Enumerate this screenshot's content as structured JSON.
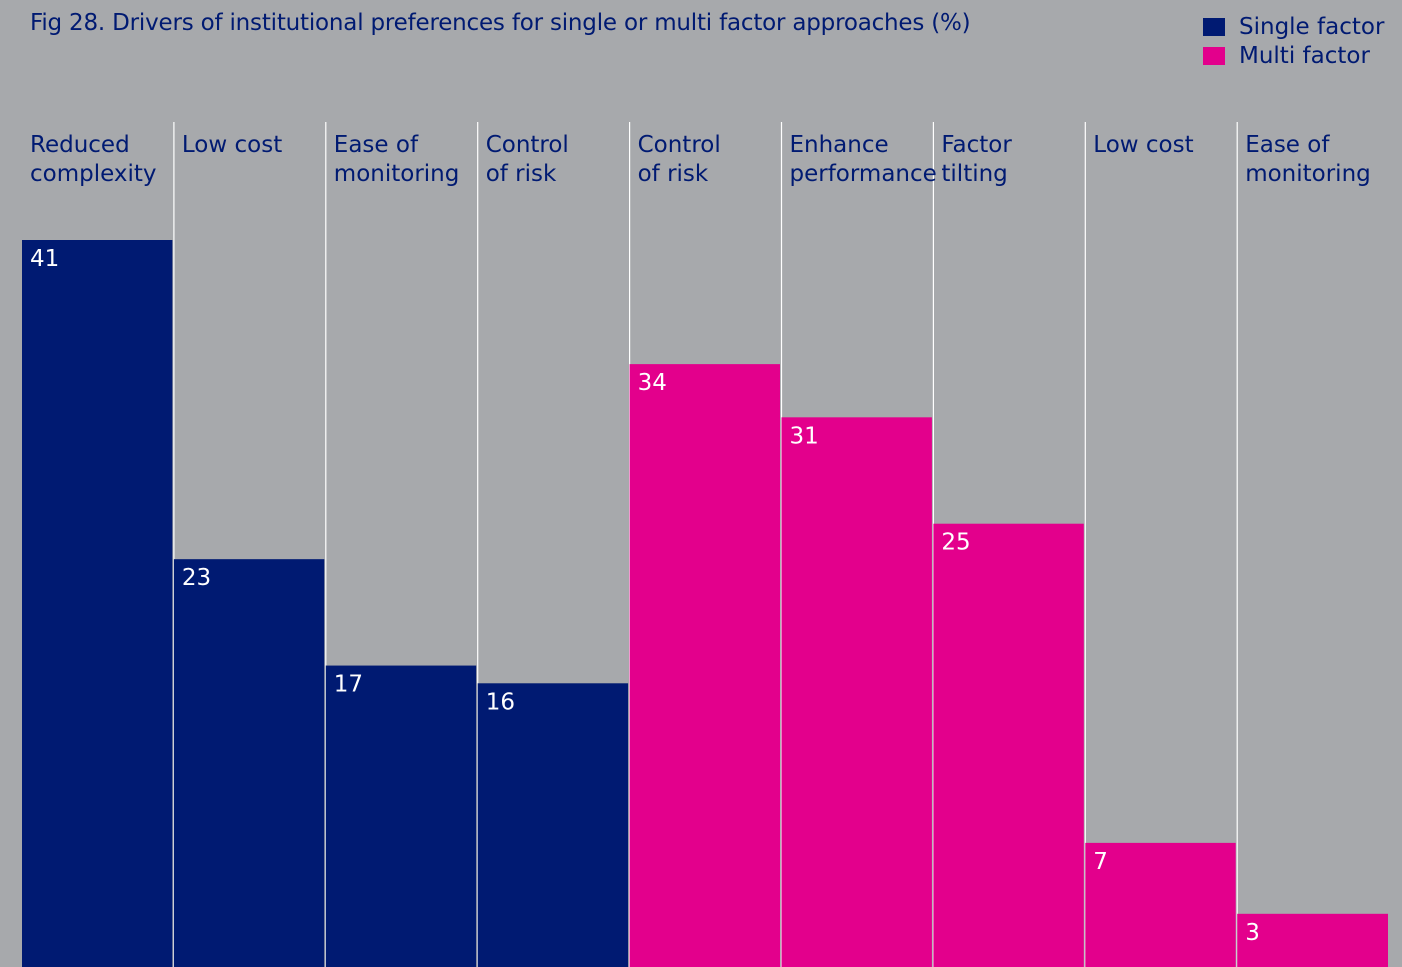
{
  "title": "Fig 28. Drivers of institutional preferences for single or multi factor approaches (%)",
  "legend": [
    {
      "label": "Single factor",
      "color": "#001a72"
    },
    {
      "label": "Multi factor",
      "color": "#e3008c"
    }
  ],
  "chart_data": {
    "type": "bar",
    "title": "Fig 28. Drivers of institutional preferences for single or multi factor approaches (%)",
    "ylim": [
      0,
      41
    ],
    "grid": false,
    "legend_position": "top-right",
    "categories": [
      [
        "Reduced",
        "complexity"
      ],
      [
        "Low cost"
      ],
      [
        "Ease of",
        "monitoring"
      ],
      [
        "Control",
        "of risk"
      ],
      [
        "Control",
        "of risk"
      ],
      [
        "Enhance",
        "performance"
      ],
      [
        "Factor",
        "tilting"
      ],
      [
        "Low cost"
      ],
      [
        "Ease of",
        "monitoring"
      ]
    ],
    "series": [
      {
        "name": "Single factor",
        "color": "#001a72",
        "values": [
          41,
          23,
          17,
          16,
          null,
          null,
          null,
          null,
          null
        ]
      },
      {
        "name": "Multi factor",
        "color": "#e3008c",
        "values": [
          null,
          null,
          null,
          null,
          34,
          31,
          25,
          7,
          3
        ]
      }
    ]
  }
}
